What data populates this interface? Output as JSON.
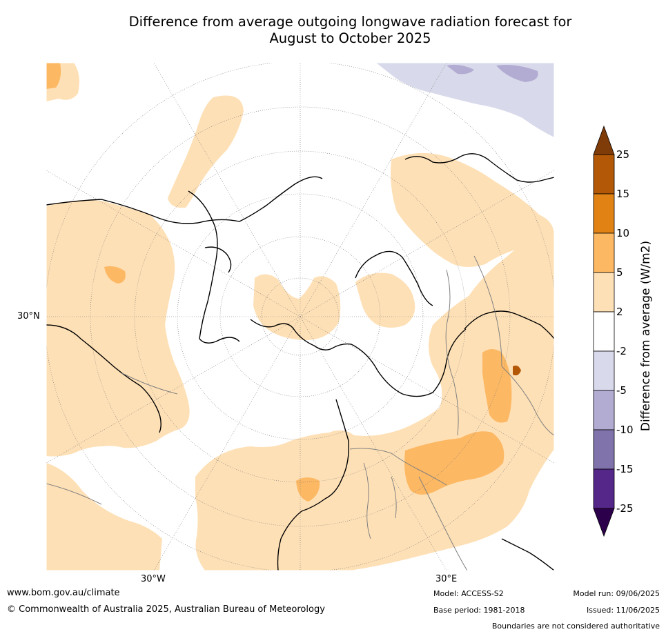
{
  "title_line1": "Difference from average outgoing longwave radiation forecast for",
  "title_line2": "August to October 2025",
  "map": {
    "projection": "north-polar-stereographic",
    "labels": {
      "lat_30n": "30°N",
      "lon_30w": "30°W",
      "lon_30e": "30°E"
    }
  },
  "colorbar": {
    "label": "Difference from average (W/m2)",
    "ticks": [
      "25",
      "15",
      "10",
      "5",
      "2",
      "-2",
      "-5",
      "-10",
      "-15",
      "-25"
    ],
    "bins": [
      {
        "range": "above 25",
        "color": "#7f3b08"
      },
      {
        "range": "15 to 25",
        "color": "#b35806"
      },
      {
        "range": "10 to 15",
        "color": "#e08214"
      },
      {
        "range": "5 to 10",
        "color": "#fdb863"
      },
      {
        "range": "2 to 5",
        "color": "#fee0b6"
      },
      {
        "range": "-2 to 2",
        "color": "#ffffff"
      },
      {
        "range": "-5 to -2",
        "color": "#d8daeb"
      },
      {
        "range": "-10 to -5",
        "color": "#b2abd2"
      },
      {
        "range": "-15 to -10",
        "color": "#8073ac"
      },
      {
        "range": "-25 to -15",
        "color": "#542788"
      },
      {
        "range": "below -25",
        "color": "#2d004b"
      }
    ]
  },
  "footer": {
    "website": "www.bom.gov.au/climate",
    "copyright": "© Commonwealth of Australia 2025, Australian Bureau of Meteorology",
    "model": "Model: ACCESS-S2",
    "base_period": "Base period: 1981-2018",
    "model_run": "Model run: 09/06/2025",
    "issued": "Issued: 11/06/2025",
    "disclaimer": "Boundaries are not considered authoritative"
  }
}
